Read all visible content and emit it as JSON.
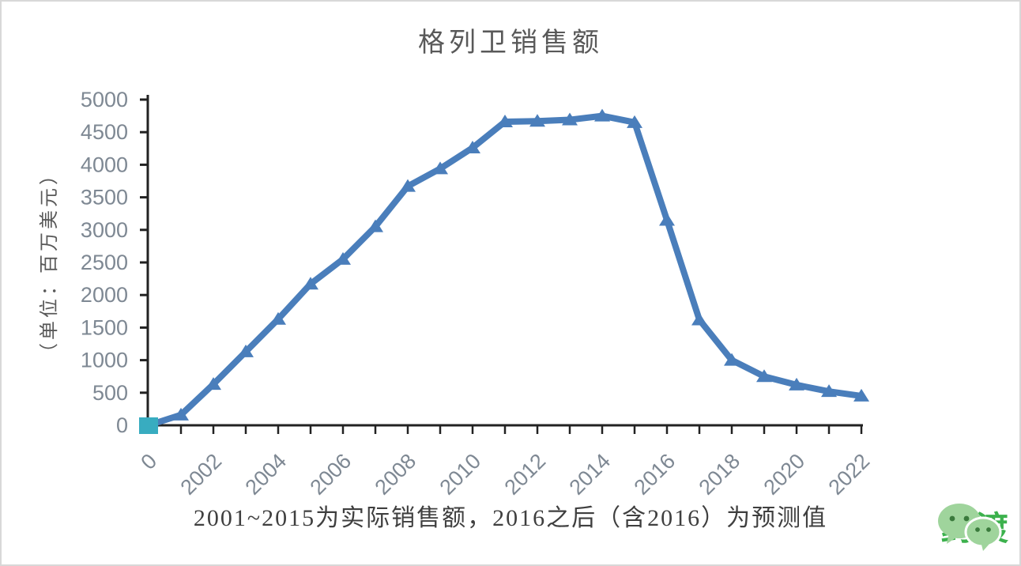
{
  "chart_data": {
    "type": "line",
    "title": "格列卫销售额",
    "ylabel": "（单位：百万美元）",
    "xlabel": "",
    "categories": [
      "0",
      "2001",
      "2002",
      "2003",
      "2004",
      "2005",
      "2006",
      "2007",
      "2008",
      "2009",
      "2010",
      "2011",
      "2012",
      "2013",
      "2014",
      "2015",
      "2016",
      "2017",
      "2018",
      "2019",
      "2020",
      "2021",
      "2022"
    ],
    "values": [
      0,
      160,
      630,
      1130,
      1630,
      2170,
      2550,
      3050,
      3670,
      3940,
      4260,
      4660,
      4670,
      4690,
      4750,
      4650,
      3150,
      1620,
      1000,
      750,
      620,
      520,
      450
    ],
    "x_ticks": [
      {
        "i": 0,
        "label": "0"
      },
      {
        "i": 2,
        "label": "2002"
      },
      {
        "i": 4,
        "label": "2004"
      },
      {
        "i": 6,
        "label": "2006"
      },
      {
        "i": 8,
        "label": "2008"
      },
      {
        "i": 10,
        "label": "2010"
      },
      {
        "i": 12,
        "label": "2012"
      },
      {
        "i": 14,
        "label": "2014"
      },
      {
        "i": 16,
        "label": "2016"
      },
      {
        "i": 18,
        "label": "2018"
      },
      {
        "i": 20,
        "label": "2020"
      },
      {
        "i": 22,
        "label": "2022"
      }
    ],
    "ylim": [
      0,
      5000
    ],
    "y_tick_step": 500,
    "grid": false,
    "legend": "none",
    "marker": "triangle-up",
    "first_point_marker": "square",
    "colors": {
      "line": "#4a7ebb",
      "first_marker": "#38acc0",
      "axis": "#222222",
      "tick_label": "#7e8893",
      "title": "#595959"
    }
  },
  "footer": {
    "note": "2001~2015为实际销售额，2016之后（含2016）为预测值",
    "logo_text": "药渡"
  }
}
